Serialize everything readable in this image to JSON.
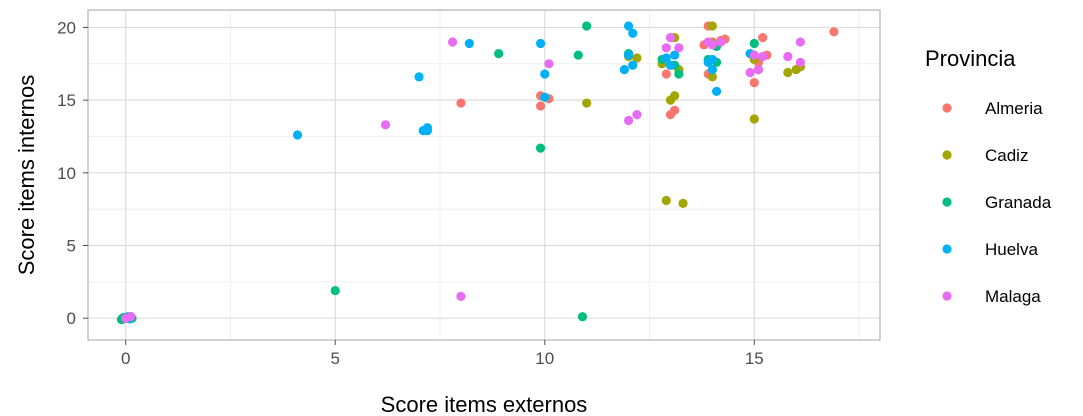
{
  "chart_data": {
    "type": "scatter",
    "title": "",
    "xlabel": "Score items externos",
    "ylabel": "Score items internos",
    "xlim": [
      -0.9,
      18
    ],
    "ylim": [
      -1.5,
      21.2
    ],
    "x_ticks": [
      0,
      5,
      10,
      15
    ],
    "y_ticks": [
      0,
      5,
      10,
      15,
      20
    ],
    "grid": true,
    "legend": {
      "title": "Provincia",
      "position": "right"
    },
    "series": [
      {
        "name": "Almeria",
        "color": "#F8766D",
        "points": [
          [
            0,
            0
          ],
          [
            0.1,
            0.1
          ],
          [
            -0.05,
            -0.05
          ],
          [
            8.0,
            14.8
          ],
          [
            9.9,
            14.6
          ],
          [
            9.9,
            15.3
          ],
          [
            10.1,
            15.1
          ],
          [
            12.9,
            16.8
          ],
          [
            13.0,
            14.0
          ],
          [
            13.1,
            14.3
          ],
          [
            13.8,
            18.8
          ],
          [
            13.9,
            16.8
          ],
          [
            13.9,
            20.1
          ],
          [
            14.0,
            19.0
          ],
          [
            14.1,
            18.7
          ],
          [
            14.2,
            19.1
          ],
          [
            14.3,
            19.2
          ],
          [
            15.0,
            17.8
          ],
          [
            15.0,
            16.2
          ],
          [
            15.1,
            17.6
          ],
          [
            15.2,
            19.3
          ],
          [
            15.3,
            18.1
          ],
          [
            16.1,
            17.3
          ],
          [
            16.9,
            19.7
          ]
        ]
      },
      {
        "name": "Cadiz",
        "color": "#A3A500",
        "points": [
          [
            0,
            0.05
          ],
          [
            -0.08,
            0.0
          ],
          [
            11.0,
            14.8
          ],
          [
            12.0,
            18.0
          ],
          [
            12.2,
            17.9
          ],
          [
            12.8,
            17.5
          ],
          [
            12.9,
            8.1
          ],
          [
            13.0,
            15.0
          ],
          [
            13.1,
            19.3
          ],
          [
            13.1,
            15.3
          ],
          [
            13.2,
            17.1
          ],
          [
            13.3,
            7.9
          ],
          [
            14.0,
            16.6
          ],
          [
            14.0,
            20.1
          ],
          [
            14.0,
            18.9
          ],
          [
            15.0,
            13.7
          ],
          [
            15.0,
            17.8
          ],
          [
            15.8,
            16.9
          ],
          [
            16.0,
            17.1
          ],
          [
            16.1,
            17.3
          ]
        ]
      },
      {
        "name": "Granada",
        "color": "#00BF7D",
        "points": [
          [
            0,
            0
          ],
          [
            0.05,
            0.1
          ],
          [
            0.1,
            -0.05
          ],
          [
            -0.05,
            0.05
          ],
          [
            0.15,
            0.0
          ],
          [
            -0.1,
            -0.1
          ],
          [
            5.0,
            1.9
          ],
          [
            8.9,
            18.2
          ],
          [
            9.9,
            11.7
          ],
          [
            10.8,
            18.1
          ],
          [
            10.9,
            0.1
          ],
          [
            11.0,
            20.1
          ],
          [
            12.0,
            18.2
          ],
          [
            12.8,
            17.8
          ],
          [
            13.1,
            17.4
          ],
          [
            13.2,
            16.8
          ],
          [
            13.9,
            17.8
          ],
          [
            14.1,
            17.6
          ],
          [
            14.1,
            18.7
          ],
          [
            15.0,
            18.9
          ]
        ]
      },
      {
        "name": "Huelva",
        "color": "#00B0F6",
        "points": [
          [
            0,
            0.05
          ],
          [
            0.08,
            -0.02
          ],
          [
            4.1,
            12.6
          ],
          [
            7.0,
            16.6
          ],
          [
            7.1,
            12.9
          ],
          [
            7.2,
            13.1
          ],
          [
            7.2,
            12.9
          ],
          [
            8.2,
            18.9
          ],
          [
            9.9,
            18.9
          ],
          [
            10.0,
            16.8
          ],
          [
            10.0,
            15.2
          ],
          [
            11.9,
            17.1
          ],
          [
            12.0,
            18.1
          ],
          [
            12.0,
            20.1
          ],
          [
            12.1,
            17.4
          ],
          [
            12.1,
            19.6
          ],
          [
            12.9,
            17.9
          ],
          [
            13.0,
            17.4
          ],
          [
            13.1,
            18.1
          ],
          [
            13.9,
            17.6
          ],
          [
            14.0,
            17.1
          ],
          [
            14.0,
            17.8
          ],
          [
            14.1,
            15.6
          ],
          [
            14.9,
            18.2
          ]
        ]
      },
      {
        "name": "Malaga",
        "color": "#E76BF3",
        "points": [
          [
            0,
            0
          ],
          [
            0.12,
            0.12
          ],
          [
            6.2,
            13.3
          ],
          [
            7.8,
            19.0
          ],
          [
            8.0,
            1.5
          ],
          [
            10.1,
            17.5
          ],
          [
            12.0,
            13.6
          ],
          [
            12.2,
            14.0
          ],
          [
            12.9,
            18.6
          ],
          [
            13.0,
            19.3
          ],
          [
            13.2,
            18.6
          ],
          [
            13.9,
            19.0
          ],
          [
            14.0,
            18.8
          ],
          [
            14.2,
            19.0
          ],
          [
            14.9,
            16.9
          ],
          [
            15.0,
            18.1
          ],
          [
            15.1,
            17.1
          ],
          [
            15.2,
            18.0
          ],
          [
            15.8,
            18.0
          ],
          [
            16.1,
            19.0
          ],
          [
            16.1,
            17.6
          ]
        ]
      }
    ]
  }
}
